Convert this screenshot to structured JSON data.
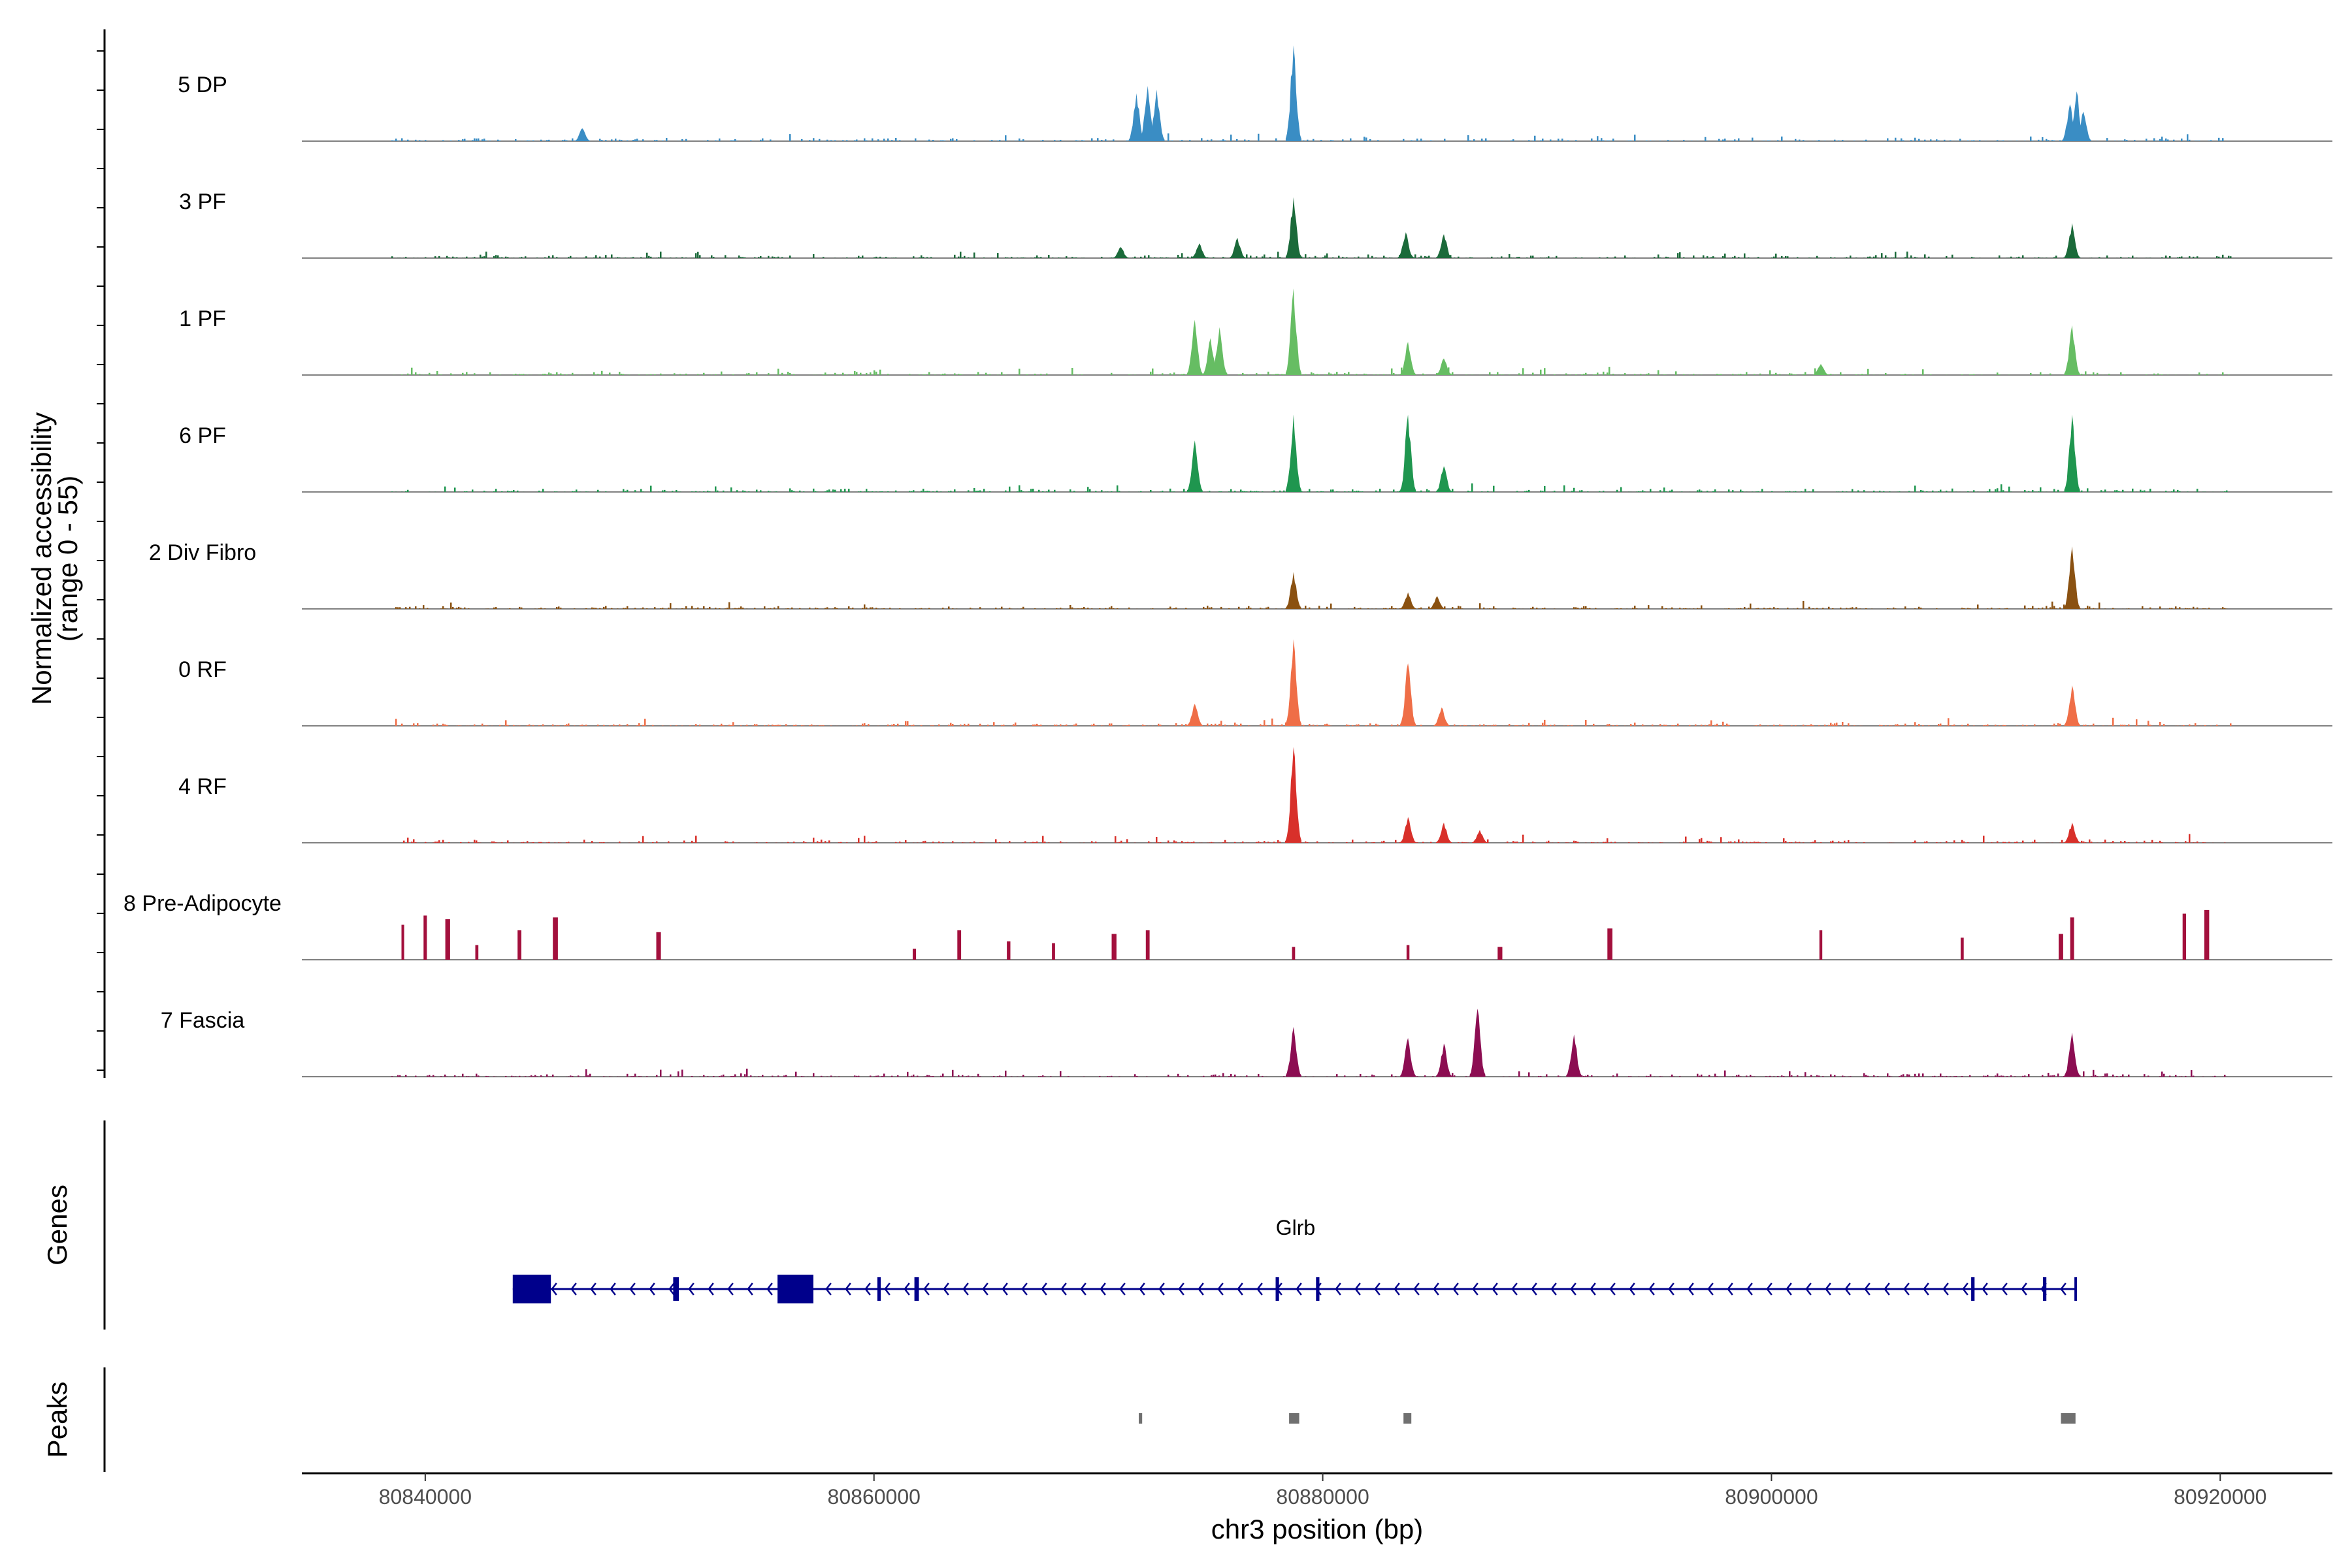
{
  "chart_data": {
    "type": "area",
    "title": "",
    "ylabel_line1": "Normalized accessibility",
    "ylabel_line2": "(range 0 - 55)",
    "ylim": [
      0,
      55
    ],
    "xlabel": "chr3 position (bp)",
    "xlim": [
      80834500,
      80925000
    ],
    "xticks": [
      80840000,
      80860000,
      80880000,
      80900000,
      80920000
    ],
    "xtick_labels": [
      "80840000",
      "80860000",
      "80880000",
      "80900000",
      "80920000"
    ],
    "tracks": [
      {
        "name": "5 DP",
        "color": "#3a8dc4",
        "mode": "dense",
        "peaks": [
          [
            80847000,
            7
          ],
          [
            80871700,
            26
          ],
          [
            80872200,
            30
          ],
          [
            80872600,
            28
          ],
          [
            80878700,
            52
          ],
          [
            80913300,
            20
          ],
          [
            80913600,
            27
          ],
          [
            80913900,
            16
          ]
        ]
      },
      {
        "name": "3 PF",
        "color": "#1b6a3a",
        "mode": "dense",
        "peaks": [
          [
            80871000,
            6
          ],
          [
            80874500,
            8
          ],
          [
            80876200,
            11
          ],
          [
            80878700,
            33
          ],
          [
            80883700,
            14
          ],
          [
            80885400,
            13
          ],
          [
            80913400,
            19
          ]
        ]
      },
      {
        "name": "1 PF",
        "color": "#66bd63",
        "mode": "dense",
        "peaks": [
          [
            80874300,
            30
          ],
          [
            80875000,
            20
          ],
          [
            80875400,
            26
          ],
          [
            80878700,
            47
          ],
          [
            80883800,
            18
          ],
          [
            80885400,
            9
          ],
          [
            80902200,
            6
          ],
          [
            80913400,
            27
          ]
        ]
      },
      {
        "name": "6 PF",
        "color": "#1f964f",
        "mode": "dense",
        "peaks": [
          [
            80874300,
            28
          ],
          [
            80878700,
            42
          ],
          [
            80883800,
            42
          ],
          [
            80885400,
            14
          ],
          [
            80913400,
            42
          ]
        ]
      },
      {
        "name": "2 Div Fibro",
        "color": "#8a5111",
        "mode": "dense",
        "peaks": [
          [
            80878700,
            20
          ],
          [
            80883800,
            9
          ],
          [
            80885100,
            7
          ],
          [
            80913400,
            34
          ]
        ]
      },
      {
        "name": "0 RF",
        "color": "#ef6e47",
        "mode": "dense",
        "peaks": [
          [
            80874300,
            12
          ],
          [
            80878700,
            47
          ],
          [
            80883800,
            34
          ],
          [
            80885300,
            10
          ],
          [
            80913400,
            22
          ]
        ]
      },
      {
        "name": "4 RF",
        "color": "#d8302a",
        "mode": "dense",
        "peaks": [
          [
            80878700,
            52
          ],
          [
            80883800,
            14
          ],
          [
            80885400,
            11
          ],
          [
            80887000,
            7
          ],
          [
            80913400,
            11
          ]
        ]
      },
      {
        "name": "8 Pre-Adipocyte",
        "color": "#a3103d",
        "mode": "sparse",
        "peaks": [
          [
            80839000,
            19
          ],
          [
            80840000,
            24
          ],
          [
            80841000,
            22
          ],
          [
            80842300,
            8
          ],
          [
            80844200,
            16
          ],
          [
            80845800,
            23
          ],
          [
            80850400,
            15
          ],
          [
            80861800,
            6
          ],
          [
            80863800,
            16
          ],
          [
            80866000,
            10
          ],
          [
            80868000,
            9
          ],
          [
            80870700,
            14
          ],
          [
            80872200,
            16
          ],
          [
            80878700,
            7
          ],
          [
            80883800,
            8
          ],
          [
            80887900,
            7
          ],
          [
            80892800,
            17
          ],
          [
            80902200,
            16
          ],
          [
            80908500,
            12
          ],
          [
            80912900,
            14
          ],
          [
            80913400,
            23
          ],
          [
            80918400,
            25
          ],
          [
            80919400,
            27
          ]
        ]
      },
      {
        "name": "7 Fascia",
        "color": "#8c0d52",
        "mode": "dense",
        "peaks": [
          [
            80878700,
            27
          ],
          [
            80883800,
            21
          ],
          [
            80885400,
            18
          ],
          [
            80886900,
            37
          ],
          [
            80891200,
            23
          ],
          [
            80913400,
            24
          ]
        ]
      }
    ],
    "gene": {
      "name": "Glrb",
      "strand": "-",
      "start": 80843900,
      "end": 80913600,
      "color": "#00008b",
      "exons": [
        [
          80843900,
          80845600
        ],
        [
          80851050,
          80851300
        ],
        [
          80855700,
          80857300
        ],
        [
          80860150,
          80860300
        ],
        [
          80861800,
          80862000
        ],
        [
          80877900,
          80878050
        ],
        [
          80879700,
          80879850
        ],
        [
          80908900,
          80909050
        ],
        [
          80912100,
          80912250
        ],
        [
          80913500,
          80913600
        ]
      ]
    },
    "peak_regions": [
      [
        80871800,
        80871950
      ],
      [
        80878500,
        80878950
      ],
      [
        80883600,
        80883950
      ],
      [
        80912900,
        80913550
      ]
    ],
    "panel_labels": {
      "genes": "Genes",
      "peaks": "Peaks"
    },
    "peak_region_color": "#707070"
  }
}
